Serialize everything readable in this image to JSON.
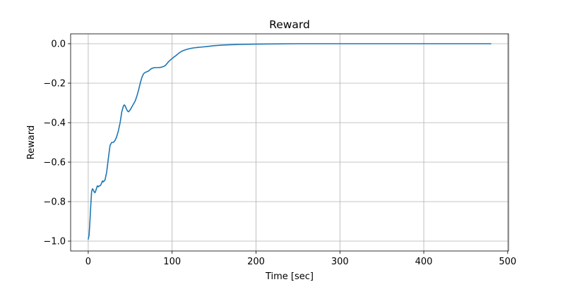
{
  "chart_data": {
    "type": "line",
    "title": "Reward",
    "xlabel": "Time [sec]",
    "ylabel": "Reward",
    "xlim": [
      -21,
      501
    ],
    "ylim": [
      -1.05,
      0.05
    ],
    "xticks": [
      0,
      100,
      200,
      300,
      400,
      500
    ],
    "xtick_labels": [
      "0",
      "100",
      "200",
      "300",
      "400",
      "500"
    ],
    "yticks": [
      -1.0,
      -0.8,
      -0.6,
      -0.4,
      -0.2,
      0.0
    ],
    "ytick_labels": [
      "−1.0",
      "−0.8",
      "−0.6",
      "−0.4",
      "−0.2",
      "0.0"
    ],
    "grid": true,
    "colors": {
      "line": "#1f77b4",
      "grid": "#b0b0b0",
      "axes": "#000000"
    },
    "series": [
      {
        "x": [
          0,
          1,
          2,
          3,
          4,
          5,
          6,
          7,
          8,
          9,
          10,
          11,
          12,
          13,
          14,
          15,
          16,
          17,
          18,
          19,
          20,
          22,
          24,
          26,
          28,
          30,
          32,
          34,
          36,
          38,
          40,
          42,
          43,
          44,
          45,
          46,
          47,
          48,
          50,
          52,
          54,
          56,
          58,
          60,
          62,
          64,
          66,
          68,
          70,
          72,
          74,
          76,
          78,
          80,
          82,
          84,
          86,
          88,
          90,
          92,
          94,
          96,
          98,
          100,
          102,
          104,
          106,
          108,
          110,
          112,
          115,
          118,
          122,
          126,
          130,
          135,
          140,
          150,
          160,
          170,
          180,
          200,
          220,
          250,
          300,
          350,
          400,
          450,
          480
        ],
        "y": [
          -0.99,
          -0.97,
          -0.9,
          -0.82,
          -0.75,
          -0.735,
          -0.74,
          -0.75,
          -0.755,
          -0.745,
          -0.73,
          -0.72,
          -0.725,
          -0.72,
          -0.72,
          -0.715,
          -0.705,
          -0.695,
          -0.7,
          -0.695,
          -0.69,
          -0.65,
          -0.58,
          -0.515,
          -0.5,
          -0.5,
          -0.49,
          -0.47,
          -0.44,
          -0.4,
          -0.345,
          -0.315,
          -0.31,
          -0.315,
          -0.325,
          -0.335,
          -0.342,
          -0.345,
          -0.335,
          -0.32,
          -0.305,
          -0.29,
          -0.265,
          -0.235,
          -0.2,
          -0.17,
          -0.152,
          -0.145,
          -0.142,
          -0.138,
          -0.13,
          -0.125,
          -0.122,
          -0.121,
          -0.121,
          -0.121,
          -0.12,
          -0.118,
          -0.115,
          -0.11,
          -0.1,
          -0.09,
          -0.082,
          -0.075,
          -0.068,
          -0.062,
          -0.055,
          -0.048,
          -0.042,
          -0.037,
          -0.032,
          -0.028,
          -0.024,
          -0.021,
          -0.019,
          -0.017,
          -0.015,
          -0.01,
          -0.007,
          -0.005,
          -0.004,
          -0.002,
          -0.001,
          0.0,
          0.0,
          0.0,
          0.0,
          0.0,
          0.0
        ]
      }
    ]
  }
}
